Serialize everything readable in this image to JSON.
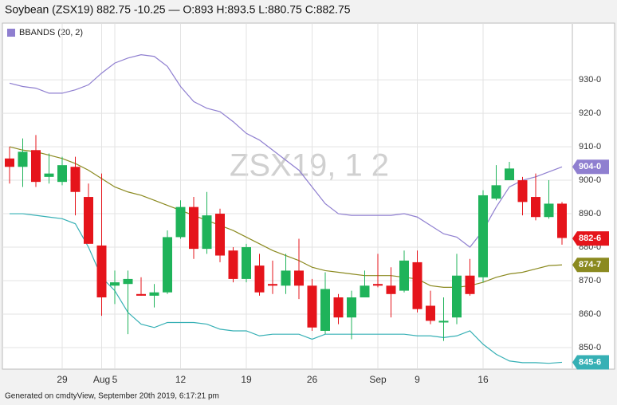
{
  "chart_data": {
    "type": "candlestick",
    "title": "Soybean (ZSX19) 882.75 -10.25 — O:893 H:893.5 L:880.75 C:882.75",
    "watermark": "ZSX19, 1 2",
    "footer": "Generated on cmdtyView, September 20th 2019, 6:17:21 pm",
    "categories": [
      null,
      null,
      null,
      null,
      "29",
      null,
      null,
      "Aug",
      "5",
      null,
      null,
      null,
      null,
      "12",
      null,
      null,
      null,
      null,
      "19",
      null,
      null,
      null,
      null,
      "26",
      null,
      null,
      null,
      null,
      "Sep",
      null,
      null,
      "9",
      null,
      null,
      null,
      null,
      "16",
      null,
      null,
      null,
      null,
      null,
      null
    ],
    "open": [
      906.5,
      904,
      909,
      901,
      899.5,
      904,
      895,
      880.5,
      868.5,
      869,
      866,
      865.5,
      866.5,
      883,
      892,
      879.5,
      890,
      879,
      870.5,
      874.5,
      869,
      868.5,
      873,
      868.5,
      855,
      865,
      859,
      865,
      869,
      868.5,
      867,
      875.5,
      862.5,
      857.5,
      859,
      871.5,
      871,
      894.5,
      900,
      900,
      895,
      889,
      893
    ],
    "high": [
      910,
      912.5,
      913.5,
      908,
      907,
      907,
      899,
      902,
      873,
      873,
      871,
      869,
      885,
      894,
      895,
      896.5,
      891.5,
      880,
      881,
      878,
      876,
      878,
      882.5,
      870.5,
      872.5,
      866,
      867,
      873,
      878,
      874,
      879,
      879,
      867,
      865,
      878,
      876.5,
      897,
      904.5,
      905.5,
      901,
      902,
      900,
      893.5
    ],
    "low": [
      899,
      898,
      898,
      899,
      898.5,
      889.5,
      881,
      859.5,
      863,
      854,
      865.5,
      862,
      866,
      882.5,
      876.5,
      878,
      875.5,
      869.5,
      869.5,
      865.5,
      866,
      866,
      864.5,
      855,
      854,
      857,
      852.5,
      865.5,
      868,
      859,
      866.5,
      860.5,
      857,
      852,
      857,
      865.5,
      869.5,
      894,
      900,
      889.5,
      888,
      888.5,
      880.75
    ],
    "close": [
      904,
      908.5,
      899.5,
      902,
      904.5,
      896.5,
      881,
      865,
      869.5,
      870.5,
      865.5,
      866.5,
      883,
      892,
      879.5,
      889.5,
      877.5,
      870.5,
      880,
      866.5,
      868.5,
      873,
      868.5,
      856,
      867.5,
      859,
      865,
      868.5,
      868.5,
      866,
      876,
      861.5,
      858,
      858,
      871.5,
      866,
      895.5,
      898.5,
      903.5,
      893.5,
      889,
      893,
      882.75
    ],
    "up_color": "#1fb35a",
    "down_color": "#e5141b",
    "legend": {
      "name": "BBANDS (20, 2)",
      "color": "#8f7fd0"
    },
    "series": [
      {
        "color": "#8f7fd0",
        "values": [
          929,
          928,
          927.5,
          926,
          926,
          927,
          928.5,
          932,
          935,
          936.5,
          937.5,
          937,
          934,
          928,
          923.5,
          921.5,
          920.5,
          917.5,
          914,
          912,
          909,
          906,
          903,
          898,
          893,
          890,
          889.5,
          889.5,
          889.5,
          889.5,
          890,
          889,
          886.5,
          884,
          883,
          880,
          885,
          892,
          898,
          900,
          901,
          902.5,
          904
        ]
      },
      {
        "color": "#8b8a20",
        "values": [
          910,
          909,
          908.5,
          907.5,
          906.5,
          905,
          903,
          900.5,
          898,
          896.5,
          895.5,
          894,
          892.5,
          891,
          889.5,
          888,
          886.5,
          885,
          883,
          881,
          879,
          877.5,
          876,
          874,
          873,
          872.5,
          872,
          871.5,
          871.5,
          871.5,
          871,
          870.5,
          868.5,
          868,
          868,
          868.5,
          869.5,
          871,
          872,
          872.5,
          873.5,
          874.5,
          874.7
        ]
      },
      {
        "color": "#36b0b5",
        "values": [
          890,
          890,
          889.5,
          889,
          888.5,
          887,
          880,
          871,
          867,
          860.5,
          857,
          856,
          857.5,
          857.5,
          857.5,
          857,
          855.5,
          855,
          855,
          853.5,
          854,
          854,
          854,
          852.5,
          854,
          854,
          854,
          854,
          854,
          854,
          854,
          853.5,
          853.5,
          853,
          853.5,
          855,
          851,
          848,
          846,
          845.5,
          845.5,
          845.3,
          845.6
        ]
      }
    ],
    "last_labels": [
      {
        "value": 904.0,
        "label": "904-0",
        "color": "#8f7fd0"
      },
      {
        "value": 882.6,
        "label": "882-6",
        "color": "#e5141b"
      },
      {
        "value": 874.7,
        "label": "874-7",
        "color": "#8b8a20"
      },
      {
        "value": 845.6,
        "label": "845-6",
        "color": "#36b0b5"
      }
    ],
    "ylim": [
      843.8,
      946.7
    ],
    "yticks": [
      {
        "value": 850,
        "label": "850-0"
      },
      {
        "value": 860,
        "label": "860-0"
      },
      {
        "value": 870,
        "label": "870-0"
      },
      {
        "value": 880,
        "label": "880-0"
      },
      {
        "value": 890,
        "label": "890-0"
      },
      {
        "value": 900,
        "label": "900-0"
      },
      {
        "value": 910,
        "label": "910-0"
      },
      {
        "value": 920,
        "label": "920-0"
      },
      {
        "value": 930,
        "label": "930-0"
      }
    ],
    "grid": true
  }
}
